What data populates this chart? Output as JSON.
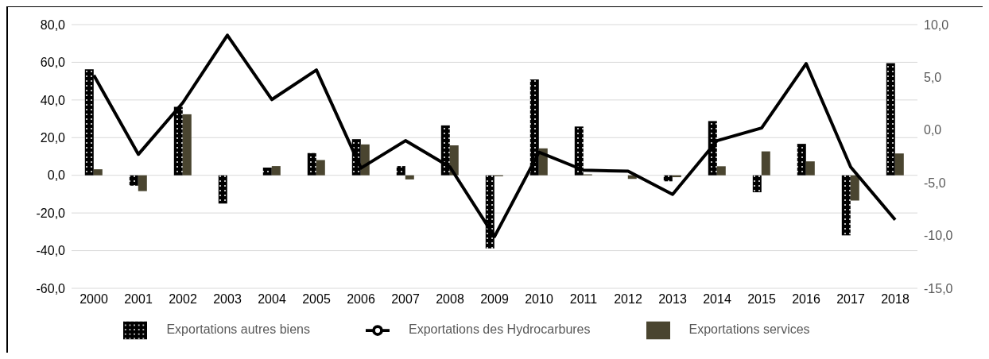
{
  "chart_data": {
    "type": "bar",
    "categories": [
      "2000",
      "2001",
      "2002",
      "2003",
      "2004",
      "2005",
      "2006",
      "2007",
      "2008",
      "2009",
      "2010",
      "2011",
      "2012",
      "2013",
      "2014",
      "2015",
      "2016",
      "2017",
      "2018"
    ],
    "series": [
      {
        "name": "Exportations autres biens",
        "color": "#000000",
        "values": [
          56.3,
          -5.5,
          36.4,
          -15,
          4.1,
          11.8,
          19.2,
          4.9,
          26.5,
          -38.8,
          50.9,
          25.9,
          0,
          -3.2,
          28.8,
          -9.0,
          16.7,
          -31.9,
          59.6
        ]
      },
      {
        "name": "Exportations services",
        "color": "#4a4530",
        "values": [
          3.2,
          -8.4,
          32.4,
          0,
          4.9,
          8.1,
          16.4,
          -2.2,
          15.9,
          -0.5,
          14.3,
          0.5,
          -1.9,
          -1.0,
          4.8,
          12.7,
          7.4,
          -13.4,
          11.6
        ]
      },
      {
        "name": "Exportations des Hydrocarbures",
        "type": "line",
        "axis": "y2",
        "color": "#000000",
        "values": [
          5.2,
          -2.3,
          2.6,
          9.0,
          2.9,
          5.7,
          -3.6,
          -1.0,
          -3.5,
          -10.1,
          -2.1,
          -3.8,
          -3.9,
          -6.1,
          -1.0,
          0.2,
          6.3,
          -3.5,
          -8.5
        ]
      }
    ],
    "ylim": [
      -60,
      80
    ],
    "yticks": [
      {
        "value": -60,
        "label": "-60,0"
      },
      {
        "value": -40,
        "label": "-40,0"
      },
      {
        "value": -20,
        "label": "-20,0"
      },
      {
        "value": 0,
        "label": "0,0"
      },
      {
        "value": 20,
        "label": "20,0"
      },
      {
        "value": 40,
        "label": "40,0"
      },
      {
        "value": 60,
        "label": "60,0"
      },
      {
        "value": 80,
        "label": "80,0"
      }
    ],
    "y2lim": [
      -15,
      10
    ],
    "y2ticks": [
      {
        "value": -15,
        "label": "-15,0"
      },
      {
        "value": -10,
        "label": "-10,0"
      },
      {
        "value": -5,
        "label": "-5,0"
      },
      {
        "value": 0,
        "label": "0,0"
      },
      {
        "value": 5,
        "label": "5,0"
      },
      {
        "value": 10,
        "label": "10,0"
      }
    ],
    "grid": "y",
    "legend": "bottom",
    "marker": "none",
    "line_style": "solid"
  }
}
